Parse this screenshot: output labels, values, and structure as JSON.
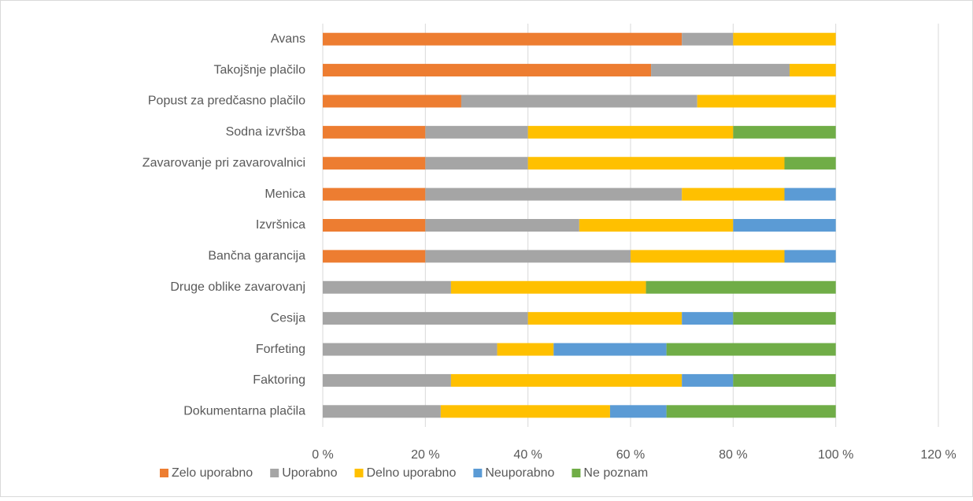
{
  "chart_data": {
    "type": "stacked-barh",
    "categories": [
      "Avans",
      "Takojšnje plačilo",
      "Popust za predčasno plačilo",
      "Sodna izvršba",
      "Zavarovanje pri zavarovalnici",
      "Menica",
      "Izvršnica",
      "Bančna garancija",
      "Druge oblike zavarovanj",
      "Cesija",
      "Forfeting",
      "Faktoring",
      "Dokumentarna plačila"
    ],
    "series": [
      {
        "name": "Zelo uporabno",
        "color": "#ed7d31",
        "values": [
          70,
          64,
          27,
          20,
          20,
          20,
          20,
          20,
          0,
          0,
          0,
          0,
          0
        ]
      },
      {
        "name": "Uporabno",
        "color": "#a5a5a5",
        "values": [
          10,
          27,
          46,
          20,
          20,
          50,
          30,
          40,
          25,
          40,
          34,
          25,
          23
        ]
      },
      {
        "name": "Delno uporabno",
        "color": "#ffc000",
        "values": [
          20,
          9,
          27,
          40,
          50,
          20,
          30,
          30,
          38,
          30,
          11,
          45,
          33
        ]
      },
      {
        "name": "Neuporabno",
        "color": "#5b9bd5",
        "values": [
          0,
          0,
          0,
          0,
          0,
          10,
          20,
          10,
          0,
          10,
          22,
          10,
          11
        ]
      },
      {
        "name": "Ne poznam",
        "color": "#70ad47",
        "values": [
          0,
          0,
          0,
          20,
          10,
          0,
          0,
          0,
          37,
          20,
          33,
          20,
          33
        ]
      }
    ],
    "xlim": [
      0,
      120
    ],
    "xticks": [
      {
        "value": 0,
        "label": "0 %"
      },
      {
        "value": 20,
        "label": "20 %"
      },
      {
        "value": 40,
        "label": "40 %"
      },
      {
        "value": 60,
        "label": "60 %"
      },
      {
        "value": 80,
        "label": "80 %"
      },
      {
        "value": 100,
        "label": "100 %"
      },
      {
        "value": 120,
        "label": "120 %"
      }
    ],
    "grid": true,
    "legend": "bottom"
  }
}
